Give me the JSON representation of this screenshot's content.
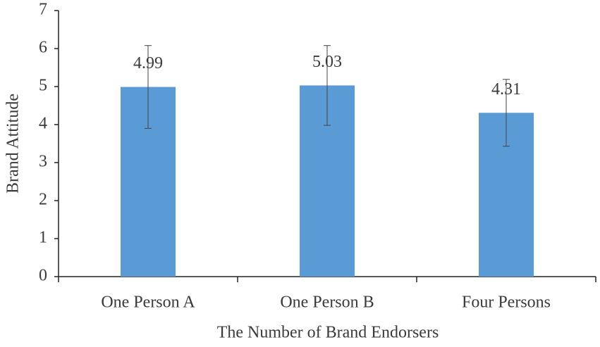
{
  "chart_data": {
    "type": "bar",
    "x_label": "The Number of Brand Endorsers",
    "y_label": "Brand Attitude",
    "categories": [
      "One Person A",
      "One Person B",
      "Four Persons"
    ],
    "values": [
      4.99,
      5.03,
      4.31
    ],
    "errors": [
      1.09,
      1.05,
      0.88
    ],
    "color": "#5b9bd5",
    "ylim": [
      0,
      7
    ],
    "yticks": [
      0,
      1,
      2,
      3,
      4,
      5,
      6,
      7
    ],
    "grid": false
  }
}
